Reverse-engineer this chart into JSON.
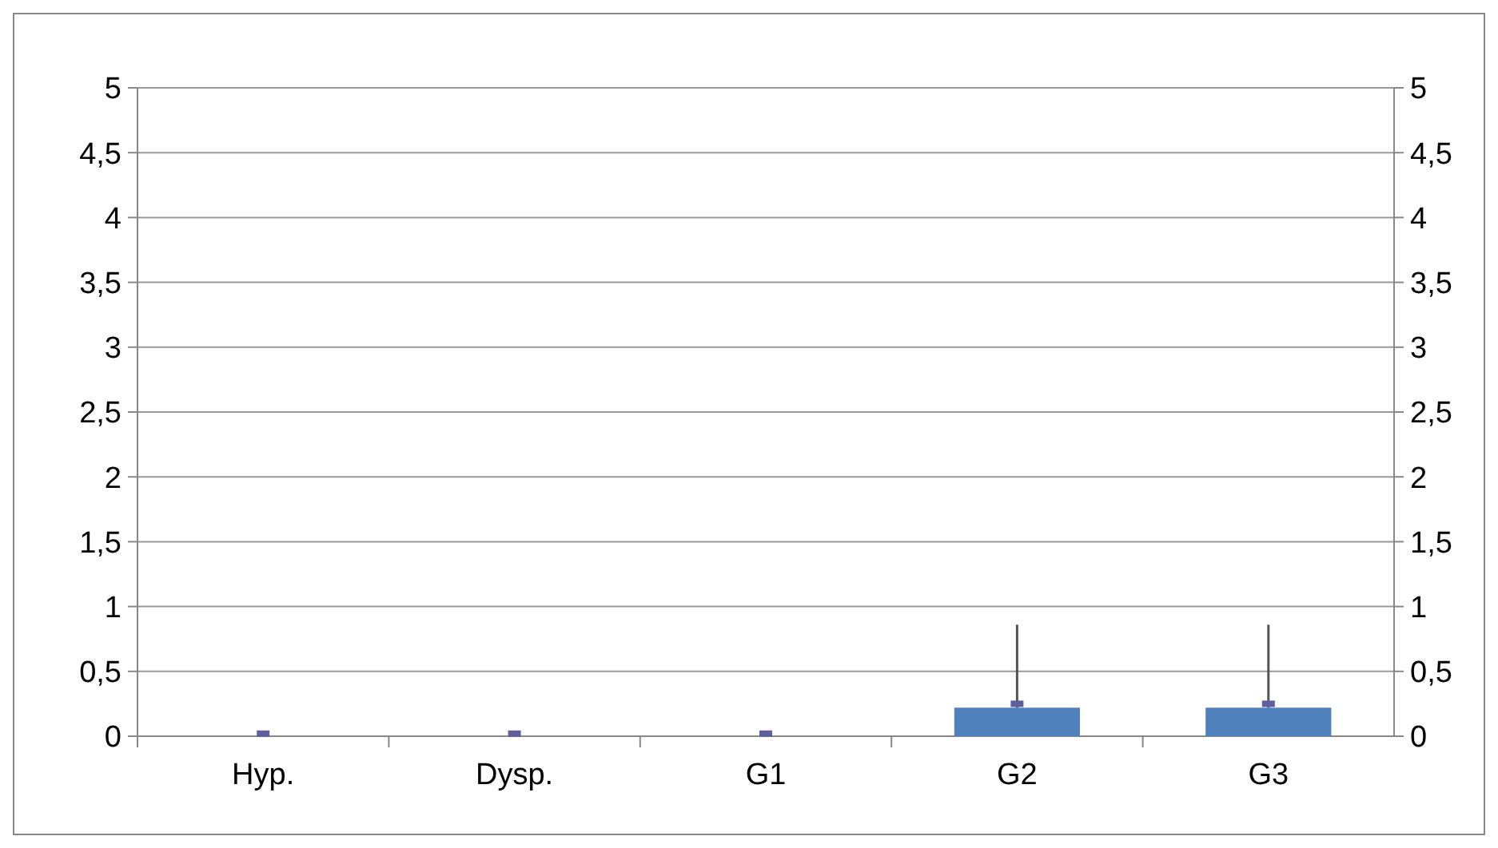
{
  "chart_data": {
    "type": "bar",
    "categories": [
      "Hyp.",
      "Dysp.",
      "G1",
      "G2",
      "G3"
    ],
    "series": [
      {
        "color": "#4f81bd",
        "values": [
          0,
          0,
          0,
          0.22,
          0.22
        ],
        "errors": [
          null,
          null,
          null,
          [
            0.22,
            0.86
          ],
          [
            0.22,
            0.86
          ]
        ]
      },
      {
        "type": "scatter",
        "color": "#5f5f9f",
        "x": [
          "Hyp.",
          "Dysp.",
          "G1",
          "G2",
          "G3"
        ],
        "values": [
          0.02,
          0.02,
          0.02,
          0.25,
          0.25
        ]
      }
    ],
    "ylim": [
      0,
      5
    ],
    "yticks": [
      0,
      {
        "value": 0.5,
        "label": "0,5"
      },
      1,
      {
        "value": 1.5,
        "label": "1,5"
      },
      2,
      {
        "value": 2.5,
        "label": "2,5"
      },
      3,
      {
        "value": 3.5,
        "label": "3,5"
      },
      4,
      {
        "value": 4.5,
        "label": "4,5"
      },
      5
    ],
    "y2lim": [
      0,
      5
    ],
    "y2ticks": [
      0,
      {
        "value": 0.5,
        "label": "0,5"
      },
      1,
      {
        "value": 1.5,
        "label": "1,5"
      },
      2,
      {
        "value": 2.5,
        "label": "2,5"
      },
      3,
      {
        "value": 3.5,
        "label": "3,5"
      },
      4,
      {
        "value": 4.5,
        "label": "4,5"
      },
      5
    ],
    "grid": "y",
    "marker": "square"
  }
}
